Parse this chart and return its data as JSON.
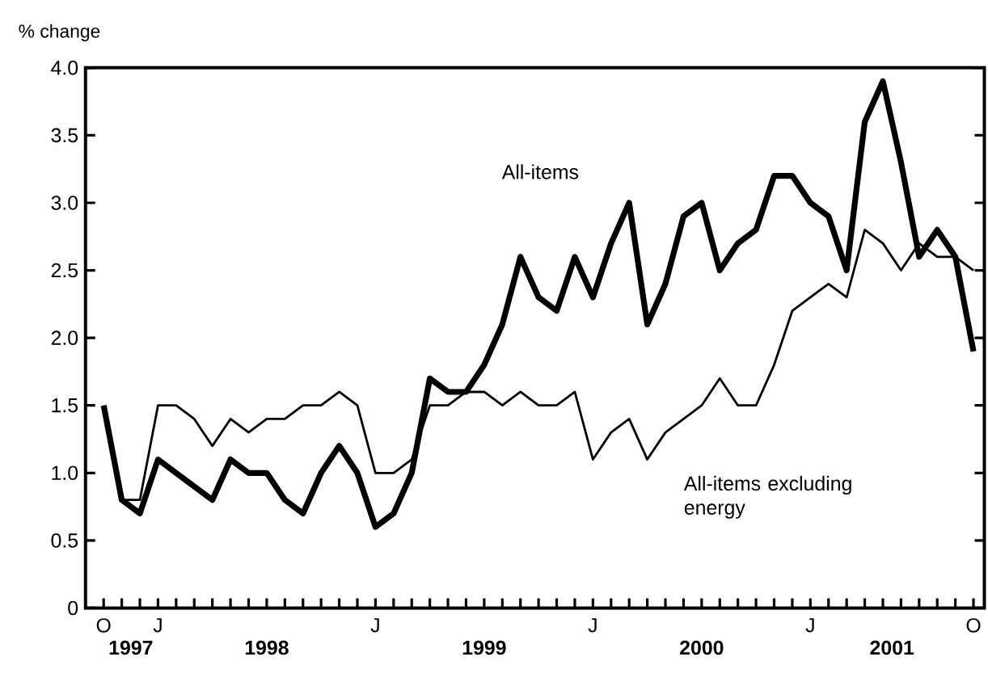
{
  "chart_data": {
    "type": "line",
    "ylabel": "% change",
    "categories": [
      "O",
      null,
      null,
      "J",
      null,
      null,
      null,
      null,
      null,
      null,
      null,
      null,
      null,
      null,
      null,
      "J",
      null,
      null,
      null,
      null,
      null,
      null,
      null,
      null,
      null,
      null,
      null,
      "J",
      null,
      null,
      null,
      null,
      null,
      null,
      null,
      null,
      null,
      null,
      null,
      "J",
      null,
      null,
      null,
      null,
      null,
      null,
      null,
      null,
      "O"
    ],
    "series": [
      {
        "name": "All-items",
        "color": "#000000",
        "values": [
          1.5,
          0.8,
          0.7,
          1.1,
          1.0,
          0.9,
          0.8,
          1.1,
          1.0,
          1.0,
          0.8,
          0.7,
          1.0,
          1.2,
          1.0,
          0.6,
          0.7,
          1.0,
          1.7,
          1.6,
          1.6,
          1.8,
          2.1,
          2.6,
          2.3,
          2.2,
          2.6,
          2.3,
          2.7,
          3.0,
          2.1,
          2.4,
          2.9,
          3.0,
          2.5,
          2.7,
          2.8,
          3.2,
          3.2,
          3.0,
          2.9,
          2.5,
          3.6,
          3.9,
          3.3,
          2.6,
          2.8,
          2.6,
          1.9
        ]
      },
      {
        "name": "All-items excluding energy",
        "color": "#000000",
        "values": [
          1.5,
          0.8,
          0.8,
          1.5,
          1.5,
          1.4,
          1.2,
          1.4,
          1.3,
          1.4,
          1.4,
          1.5,
          1.5,
          1.6,
          1.5,
          1.0,
          1.0,
          1.1,
          1.5,
          1.5,
          1.6,
          1.6,
          1.5,
          1.6,
          1.5,
          1.5,
          1.6,
          1.1,
          1.3,
          1.4,
          1.1,
          1.3,
          1.4,
          1.5,
          1.7,
          1.5,
          1.5,
          1.8,
          2.2,
          2.3,
          2.4,
          2.3,
          2.8,
          2.7,
          2.5,
          2.7,
          2.6,
          2.6,
          2.5
        ]
      }
    ],
    "annotations": [
      "1997",
      "1998",
      "1999",
      "2000",
      "2001"
    ],
    "ylim": [
      0,
      4
    ],
    "yticks": [
      {
        "value": 0,
        "label": "0"
      },
      {
        "value": 0.5,
        "label": "0.5"
      },
      {
        "value": 1,
        "label": "1.0"
      },
      {
        "value": 1.5,
        "label": "1.5"
      },
      {
        "value": 2,
        "label": "2.0"
      },
      {
        "value": 2.5,
        "label": "2.5"
      },
      {
        "value": 3,
        "label": "3.0"
      },
      {
        "value": 3.5,
        "label": "3.5"
      },
      {
        "value": 4,
        "label": "4.0"
      }
    ],
    "line_style": "solid"
  }
}
